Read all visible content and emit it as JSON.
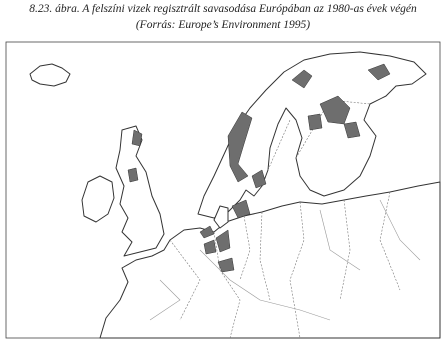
{
  "caption": {
    "line1": "8.23. ábra. A felszíni vizek regisztrált savasodása Európában az 1980-as évek végén",
    "line2": "(Forrás: Europe’s Environment 1995)"
  }
}
